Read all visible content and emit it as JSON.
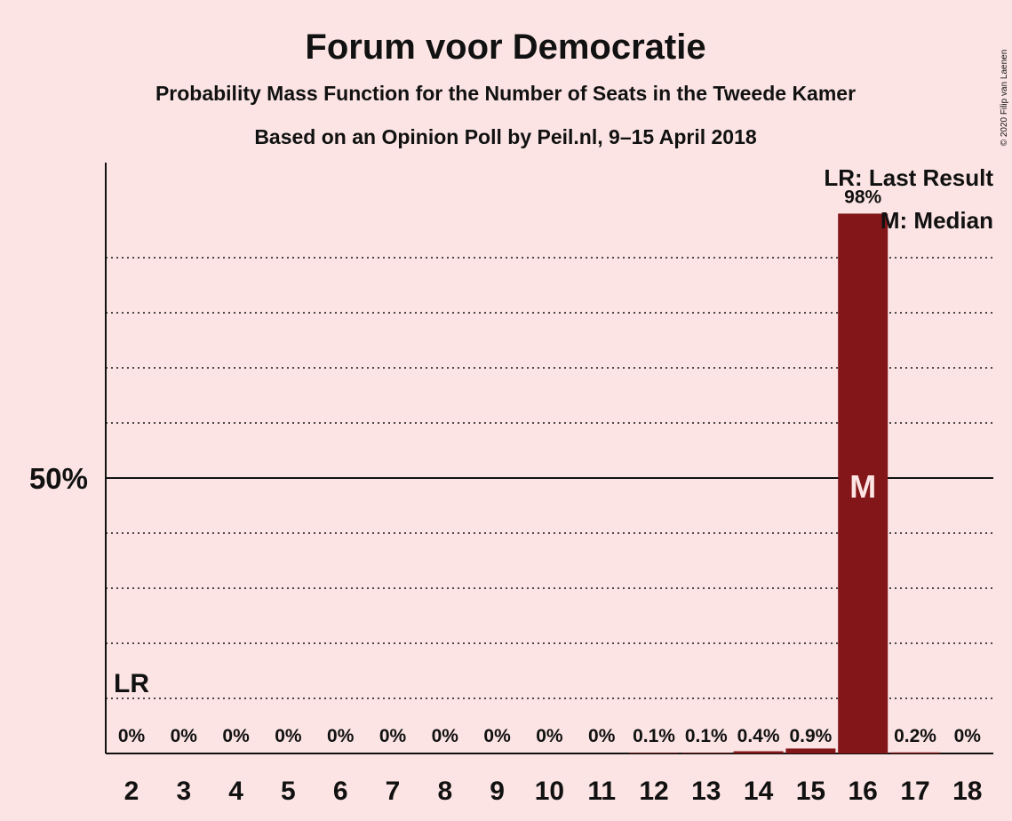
{
  "title": "Forum voor Democratie",
  "subtitle1": "Probability Mass Function for the Number of Seats in the Tweede Kamer",
  "subtitle2": "Based on an Opinion Poll by Peil.nl, 9–15 April 2018",
  "copyright": "© 2020 Filip van Laenen",
  "legend": {
    "last_result": "LR: Last Result",
    "median": "M: Median"
  },
  "colors": {
    "background": "#FCE4E4",
    "bar": "#831618",
    "text": "#111111",
    "median_mark": "#FCE4E4"
  },
  "chart_data": {
    "type": "bar",
    "categories": [
      "2",
      "3",
      "4",
      "5",
      "6",
      "7",
      "8",
      "9",
      "10",
      "11",
      "12",
      "13",
      "14",
      "15",
      "16",
      "17",
      "18"
    ],
    "values": [
      0,
      0,
      0,
      0,
      0,
      0,
      0,
      0,
      0,
      0,
      0.1,
      0.1,
      0.4,
      0.9,
      98,
      0.2,
      0
    ],
    "labels": [
      "0%",
      "0%",
      "0%",
      "0%",
      "0%",
      "0%",
      "0%",
      "0%",
      "0%",
      "0%",
      "0.1%",
      "0.1%",
      "0.4%",
      "0.9%",
      "98%",
      "0.2%",
      "0%"
    ],
    "ylim": [
      0,
      107
    ],
    "y_tick_label": "50%",
    "y_tick_value": 50,
    "gridlines": [
      10,
      20,
      30,
      40,
      60,
      70,
      80,
      90
    ],
    "last_result_category": "2",
    "last_result_label": "LR",
    "median_category": "16",
    "median_label": "M"
  }
}
